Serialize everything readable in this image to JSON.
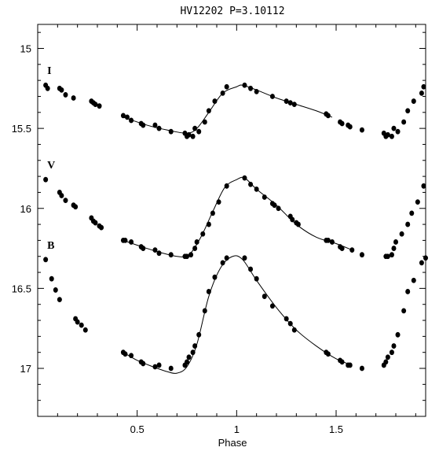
{
  "chart_data": {
    "type": "scatter",
    "title": "HV12202 P=3.10112",
    "xlabel": "Phase",
    "ylabel": "",
    "xlim": [
      0.0,
      1.95
    ],
    "ylim": [
      17.3,
      14.85
    ],
    "y_inverted": true,
    "x_ticks": [
      0.5,
      1,
      1.5
    ],
    "x_tick_labels": [
      "0.5",
      "1",
      "1.5"
    ],
    "y_ticks": [
      15,
      15.5,
      16,
      16.5,
      17
    ],
    "y_tick_labels": [
      "15",
      "15.5",
      "16",
      "16.5",
      "17"
    ],
    "grid": false,
    "legend": "none",
    "series": [
      {
        "name": "I",
        "points": [
          [
            0.04,
            15.23
          ],
          [
            0.05,
            15.25
          ],
          [
            0.11,
            15.25
          ],
          [
            0.12,
            15.26
          ],
          [
            0.14,
            15.29
          ],
          [
            0.18,
            15.31
          ],
          [
            0.27,
            15.33
          ],
          [
            0.28,
            15.34
          ],
          [
            0.29,
            15.35
          ],
          [
            0.31,
            15.36
          ],
          [
            0.43,
            15.42
          ],
          [
            0.45,
            15.43
          ],
          [
            0.47,
            15.45
          ],
          [
            0.52,
            15.47
          ],
          [
            0.53,
            15.48
          ],
          [
            0.59,
            15.48
          ],
          [
            0.61,
            15.5
          ],
          [
            0.67,
            15.52
          ],
          [
            0.74,
            15.53
          ],
          [
            0.75,
            15.55
          ],
          [
            0.76,
            15.54
          ],
          [
            0.78,
            15.55
          ],
          [
            0.79,
            15.5
          ],
          [
            0.81,
            15.52
          ],
          [
            0.84,
            15.46
          ],
          [
            0.86,
            15.39
          ],
          [
            0.89,
            15.33
          ],
          [
            0.93,
            15.28
          ],
          [
            0.95,
            15.24
          ],
          [
            1.04,
            15.23
          ],
          [
            1.07,
            15.25
          ],
          [
            1.1,
            15.27
          ],
          [
            1.18,
            15.3
          ],
          [
            1.25,
            15.33
          ],
          [
            1.27,
            15.34
          ],
          [
            1.29,
            15.35
          ],
          [
            1.45,
            15.41
          ],
          [
            1.46,
            15.42
          ],
          [
            1.52,
            15.46
          ],
          [
            1.53,
            15.47
          ],
          [
            1.56,
            15.48
          ],
          [
            1.57,
            15.49
          ],
          [
            1.63,
            15.51
          ],
          [
            1.74,
            15.53
          ],
          [
            1.75,
            15.55
          ],
          [
            1.76,
            15.54
          ],
          [
            1.78,
            15.55
          ],
          [
            1.79,
            15.5
          ],
          [
            1.81,
            15.52
          ],
          [
            1.84,
            15.46
          ],
          [
            1.86,
            15.39
          ],
          [
            1.89,
            15.33
          ],
          [
            1.93,
            15.28
          ],
          [
            1.94,
            15.24
          ]
        ],
        "fit": [
          [
            0.43,
            15.43
          ],
          [
            0.55,
            15.48
          ],
          [
            0.65,
            15.51
          ],
          [
            0.75,
            15.53
          ],
          [
            0.8,
            15.5
          ],
          [
            0.86,
            15.4
          ],
          [
            0.93,
            15.28
          ],
          [
            1.0,
            15.24
          ],
          [
            1.03,
            15.23
          ],
          [
            1.1,
            15.26
          ],
          [
            1.2,
            15.31
          ],
          [
            1.3,
            15.35
          ],
          [
            1.4,
            15.39
          ],
          [
            1.48,
            15.43
          ]
        ]
      },
      {
        "name": "V",
        "points": [
          [
            0.04,
            15.82
          ],
          [
            0.11,
            15.9
          ],
          [
            0.12,
            15.92
          ],
          [
            0.14,
            15.95
          ],
          [
            0.18,
            15.98
          ],
          [
            0.19,
            15.99
          ],
          [
            0.27,
            16.06
          ],
          [
            0.28,
            16.08
          ],
          [
            0.29,
            16.09
          ],
          [
            0.31,
            16.11
          ],
          [
            0.32,
            16.12
          ],
          [
            0.43,
            16.2
          ],
          [
            0.44,
            16.2
          ],
          [
            0.47,
            16.21
          ],
          [
            0.52,
            16.24
          ],
          [
            0.53,
            16.25
          ],
          [
            0.59,
            16.26
          ],
          [
            0.61,
            16.28
          ],
          [
            0.67,
            16.29
          ],
          [
            0.74,
            16.3
          ],
          [
            0.75,
            16.3
          ],
          [
            0.77,
            16.29
          ],
          [
            0.79,
            16.25
          ],
          [
            0.8,
            16.21
          ],
          [
            0.83,
            16.16
          ],
          [
            0.86,
            16.1
          ],
          [
            0.88,
            16.03
          ],
          [
            0.91,
            15.96
          ],
          [
            0.95,
            15.86
          ],
          [
            1.04,
            15.81
          ],
          [
            1.07,
            15.85
          ],
          [
            1.1,
            15.88
          ],
          [
            1.14,
            15.93
          ],
          [
            1.18,
            15.97
          ],
          [
            1.19,
            15.98
          ],
          [
            1.21,
            16.0
          ],
          [
            1.27,
            16.05
          ],
          [
            1.28,
            16.07
          ],
          [
            1.3,
            16.09
          ],
          [
            1.31,
            16.1
          ],
          [
            1.45,
            16.2
          ],
          [
            1.46,
            16.2
          ],
          [
            1.48,
            16.21
          ],
          [
            1.52,
            16.24
          ],
          [
            1.53,
            16.25
          ],
          [
            1.58,
            16.26
          ],
          [
            1.63,
            16.29
          ],
          [
            1.75,
            16.3
          ],
          [
            1.76,
            16.3
          ],
          [
            1.78,
            16.29
          ],
          [
            1.79,
            16.25
          ],
          [
            1.8,
            16.21
          ],
          [
            1.83,
            16.16
          ],
          [
            1.86,
            16.1
          ],
          [
            1.88,
            16.03
          ],
          [
            1.91,
            15.96
          ],
          [
            1.94,
            15.86
          ]
        ],
        "fit": [
          [
            0.43,
            16.2
          ],
          [
            0.5,
            16.23
          ],
          [
            0.6,
            16.27
          ],
          [
            0.7,
            16.3
          ],
          [
            0.76,
            16.29
          ],
          [
            0.82,
            16.18
          ],
          [
            0.88,
            16.02
          ],
          [
            0.94,
            15.87
          ],
          [
            1.0,
            15.82
          ],
          [
            1.04,
            15.81
          ],
          [
            1.1,
            15.88
          ],
          [
            1.2,
            15.98
          ],
          [
            1.3,
            16.1
          ],
          [
            1.4,
            16.18
          ],
          [
            1.5,
            16.22
          ],
          [
            1.58,
            16.26
          ]
        ]
      },
      {
        "name": "B",
        "points": [
          [
            0.04,
            16.32
          ],
          [
            0.07,
            16.44
          ],
          [
            0.09,
            16.51
          ],
          [
            0.11,
            16.57
          ],
          [
            0.19,
            16.69
          ],
          [
            0.2,
            16.71
          ],
          [
            0.22,
            16.73
          ],
          [
            0.24,
            16.76
          ],
          [
            0.43,
            16.9
          ],
          [
            0.44,
            16.91
          ],
          [
            0.47,
            16.92
          ],
          [
            0.52,
            16.96
          ],
          [
            0.53,
            16.97
          ],
          [
            0.59,
            16.99
          ],
          [
            0.61,
            16.98
          ],
          [
            0.67,
            17.0
          ],
          [
            0.74,
            16.98
          ],
          [
            0.75,
            16.96
          ],
          [
            0.76,
            16.93
          ],
          [
            0.78,
            16.9
          ],
          [
            0.79,
            16.86
          ],
          [
            0.81,
            16.79
          ],
          [
            0.84,
            16.64
          ],
          [
            0.86,
            16.52
          ],
          [
            0.89,
            16.43
          ],
          [
            0.93,
            16.34
          ],
          [
            0.95,
            16.31
          ],
          [
            1.04,
            16.31
          ],
          [
            1.07,
            16.38
          ],
          [
            1.1,
            16.44
          ],
          [
            1.14,
            16.55
          ],
          [
            1.18,
            16.61
          ],
          [
            1.25,
            16.69
          ],
          [
            1.27,
            16.72
          ],
          [
            1.29,
            16.76
          ],
          [
            1.45,
            16.9
          ],
          [
            1.46,
            16.91
          ],
          [
            1.52,
            16.95
          ],
          [
            1.53,
            16.96
          ],
          [
            1.56,
            16.98
          ],
          [
            1.57,
            16.98
          ],
          [
            1.63,
            17.0
          ],
          [
            1.74,
            16.98
          ],
          [
            1.75,
            16.96
          ],
          [
            1.76,
            16.93
          ],
          [
            1.78,
            16.9
          ],
          [
            1.79,
            16.86
          ],
          [
            1.81,
            16.79
          ],
          [
            1.84,
            16.64
          ],
          [
            1.86,
            16.52
          ],
          [
            1.89,
            16.45
          ],
          [
            1.93,
            16.34
          ],
          [
            1.95,
            16.31
          ]
        ],
        "fit": [
          [
            0.43,
            16.9
          ],
          [
            0.5,
            16.95
          ],
          [
            0.58,
            16.99
          ],
          [
            0.65,
            17.02
          ],
          [
            0.7,
            17.03
          ],
          [
            0.75,
            16.99
          ],
          [
            0.8,
            16.85
          ],
          [
            0.86,
            16.55
          ],
          [
            0.92,
            16.37
          ],
          [
            0.98,
            16.3
          ],
          [
            1.03,
            16.32
          ],
          [
            1.1,
            16.45
          ],
          [
            1.2,
            16.62
          ],
          [
            1.3,
            16.76
          ],
          [
            1.4,
            16.86
          ],
          [
            1.5,
            16.94
          ],
          [
            1.58,
            16.98
          ]
        ]
      }
    ]
  }
}
